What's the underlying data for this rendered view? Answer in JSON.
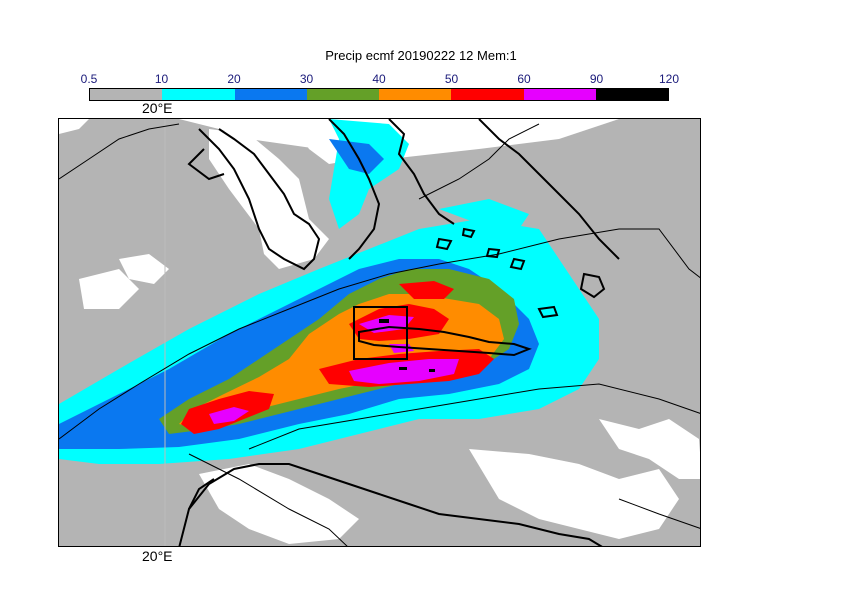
{
  "title": "Precip ecmf 20190222 12 Mem:1",
  "colorbar": {
    "ticks": [
      "0.5",
      "10",
      "20",
      "30",
      "40",
      "50",
      "60",
      "90",
      "120"
    ],
    "colors": [
      "#b4b4b4",
      "#00ffff",
      "#0a78f0",
      "#64a028",
      "#ff8c00",
      "#ff0000",
      "#e600ff",
      "#000000"
    ]
  },
  "map": {
    "lon_label_top": "20°E",
    "lon_label_bottom": "20°E",
    "background": "#ffffff",
    "coast_color": "#000000",
    "grid_color": "#bdbdbd"
  }
}
